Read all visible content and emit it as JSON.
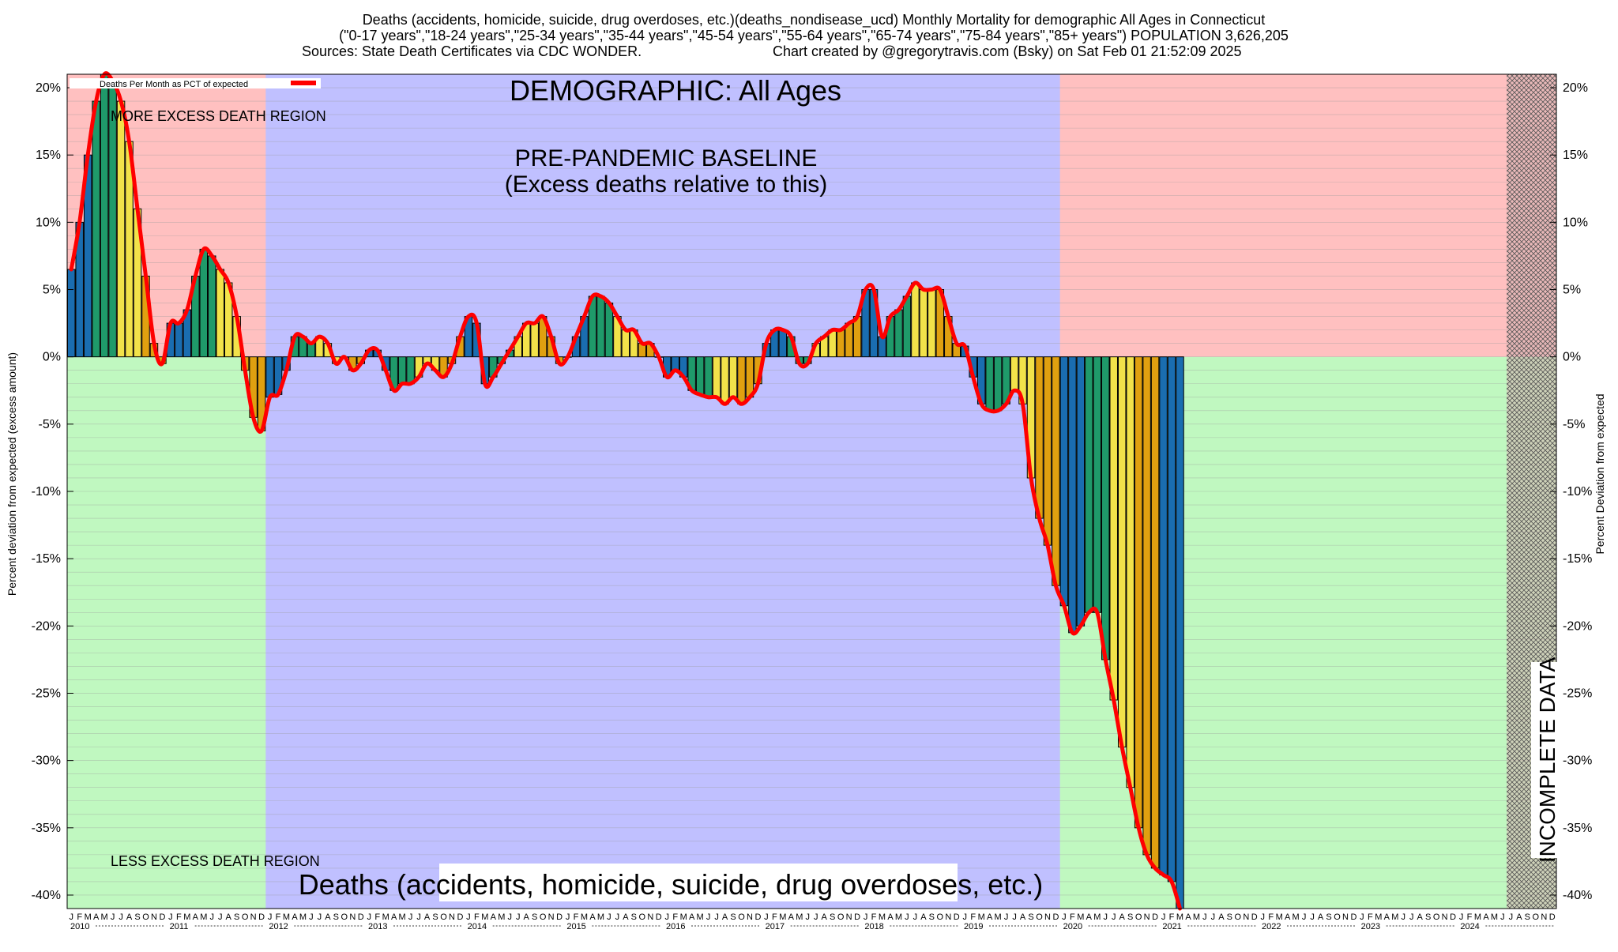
{
  "header": {
    "line1": "Deaths (accidents, homicide, suicide, drug overdoses, etc.)(deaths_nondisease_ucd) Monthly Mortality for demographic All Ages in Connecticut",
    "line2": "(\"0-17 years\",\"18-24 years\",\"25-34 years\",\"35-44 years\",\"45-54 years\",\"55-64 years\",\"65-74 years\",\"75-84 years\",\"85+ years\") POPULATION 3,626,205",
    "line3_left": "Sources: State Death Certificates via CDC WONDER.",
    "line3_right": "Chart created by @gregorytravis.com (Bsky) on Sat Feb 01 21:52:09 2025"
  },
  "colors": {
    "excess_region": "#ffc0c0",
    "less_region": "#c0f8c0",
    "baseline_region": "#c0c0ff",
    "incomplete_region": "#d9b3b3",
    "line": "#ff0000",
    "bar_palette": [
      "#1a6db0",
      "#1f9a6a",
      "#f2e24a",
      "#e0a010"
    ]
  },
  "chart_data": {
    "type": "bar",
    "title": "DEMOGRAPHIC: All Ages",
    "subtitle": "Deaths (accidents, homicide, suicide, drug overdoses, etc.)",
    "ylabel": "Percent deviation from expected (excess amount)",
    "ylabel_right": "Percent Deviation from expected",
    "ylim": [
      -41,
      21
    ],
    "yticks": [
      20,
      15,
      10,
      5,
      0,
      -5,
      -10,
      -15,
      -20,
      -25,
      -30,
      -35,
      -40
    ],
    "ytick_labels": [
      "20%",
      "15%",
      "10%",
      "5%",
      "0%",
      "-5%",
      "-10%",
      "-15%",
      "-20%",
      "-25%",
      "-30%",
      "-35%",
      "-40%"
    ],
    "legend": {
      "label": "Deaths Per Month as PCT of expected",
      "placement": "top-left"
    },
    "month_letters": [
      "J",
      "F",
      "M",
      "A",
      "M",
      "J",
      "J",
      "A",
      "S",
      "O",
      "N",
      "D"
    ],
    "years": [
      "2010",
      "2011",
      "2012",
      "2013",
      "2014",
      "2015",
      "2016",
      "2017",
      "2018",
      "2019",
      "2020",
      "2021",
      "2022",
      "2023",
      "2024"
    ],
    "start": "2010-01",
    "regions": [
      {
        "name": "excess",
        "label": "MORE EXCESS DEATH REGION"
      },
      {
        "name": "less",
        "label": "LESS EXCESS DEATH REGION"
      },
      {
        "name": "baseline",
        "label": "PRE-PANDEMIC BASELINE",
        "sublabel": "(Excess deaths relative to this)",
        "from": "2012-01",
        "to": "2019-12"
      },
      {
        "name": "incomplete",
        "label": "INCOMPLETE DATA",
        "from": "2024-07",
        "to": "2024-12"
      }
    ],
    "series": [
      {
        "name": "Deaths Per Month as PCT of expected",
        "values": [
          6.5,
          10,
          15,
          19,
          21,
          20.5,
          19,
          16,
          11,
          6,
          1,
          -0.5,
          2.5,
          2.5,
          3.5,
          6,
          8,
          7.5,
          6.5,
          5.5,
          3,
          -1,
          -4.5,
          -5.5,
          -3,
          -2.8,
          -1,
          1.5,
          1.5,
          1,
          1.5,
          1,
          -0.5,
          0,
          -1,
          -0.5,
          0.5,
          0.5,
          -1,
          -2.5,
          -2,
          -2,
          -1.5,
          -0.5,
          -1,
          -1.5,
          -0.5,
          1.5,
          3,
          2.5,
          -2,
          -1.5,
          -0.5,
          0.5,
          1.5,
          2.5,
          2.5,
          3,
          1.5,
          -0.5,
          0,
          1.5,
          3,
          4.5,
          4.5,
          4,
          3,
          2,
          2,
          1,
          1,
          0,
          -1.5,
          -1,
          -1.5,
          -2.5,
          -2.8,
          -3,
          -3,
          -3.5,
          -3,
          -3.5,
          -3,
          -2,
          1,
          2,
          2,
          1.5,
          -0.5,
          -0.5,
          1,
          1.5,
          2,
          2,
          2.5,
          3,
          5,
          5,
          1.5,
          3,
          3.5,
          4.5,
          5.5,
          5,
          5,
          5,
          3,
          1,
          0.8,
          -1.5,
          -3.5,
          -4,
          -4,
          -3.5,
          -2.5,
          -3.5,
          -9,
          -12,
          -14,
          -17,
          -18.5,
          -20.5,
          -20,
          -19,
          -19,
          -22.5,
          -25.5,
          -29,
          -32,
          -35,
          -37,
          -38,
          -38.5,
          -39,
          -41
        ]
      }
    ]
  }
}
